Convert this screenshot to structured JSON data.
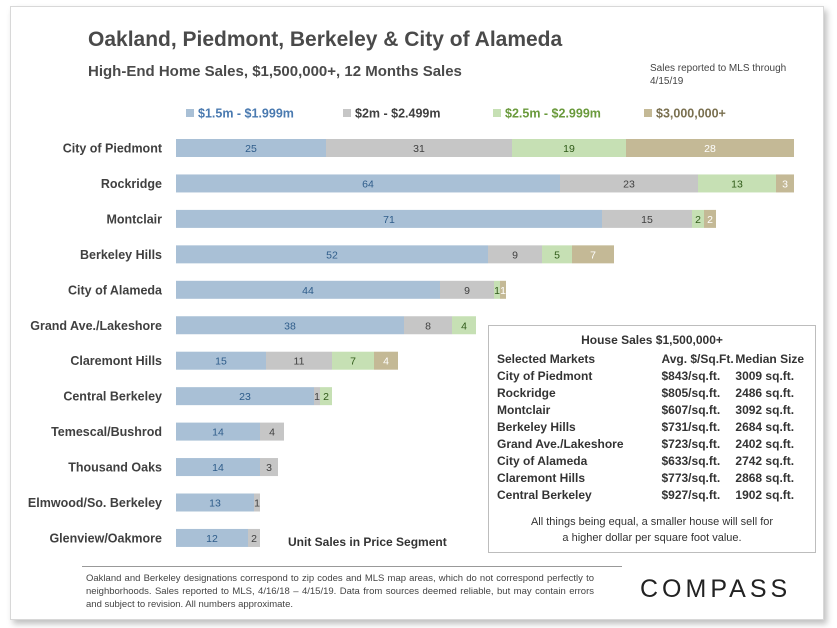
{
  "header": {
    "title": "Oakland, Piedmont, Berkeley & City of Alameda",
    "subtitle": "High-End  Home Sales, $1,500,000+, 12 Months Sales",
    "sales_note": "Sales reported to MLS through 4/15/19"
  },
  "chart_data": {
    "type": "bar",
    "orientation": "horizontal",
    "stacked": true,
    "title": "",
    "xlabel": "Unit Sales in Price Segment",
    "ylabel": "",
    "legend_position": "top",
    "grid": false,
    "xlim": [
      0,
      110
    ],
    "categories": [
      "City of Piedmont",
      "Rockridge",
      "Montclair",
      "Berkeley Hills",
      "City of Alameda",
      "Grand Ave./Lakeshore",
      "Claremont Hills",
      "Central Berkeley",
      "Temescal/Bushrod",
      "Thousand Oaks",
      "Elmwood/So. Berkeley",
      "Glenview/Oakmore"
    ],
    "series": [
      {
        "name": "$1.5m - $1.999m",
        "color": "#a9c0d6",
        "label_color": "#2e5c8a",
        "values": [
          25,
          64,
          71,
          52,
          44,
          38,
          15,
          23,
          14,
          14,
          13,
          12
        ]
      },
      {
        "name": "$2m - $2.499m",
        "color": "#c6c6c6",
        "label_color": "#404040",
        "values": [
          31,
          23,
          15,
          9,
          9,
          8,
          11,
          1,
          4,
          3,
          1,
          2
        ]
      },
      {
        "name": "$2.5m - $2.999m",
        "color": "#c6e0b4",
        "label_color": "#2f5a18",
        "values": [
          19,
          13,
          2,
          5,
          1,
          4,
          7,
          2,
          0,
          0,
          0,
          0
        ]
      },
      {
        "name": "$3,000,000+",
        "color": "#c4b996",
        "label_color": "#ffffff",
        "values": [
          28,
          3,
          2,
          7,
          1,
          0,
          4,
          0,
          0,
          0,
          0,
          0
        ]
      }
    ],
    "legend_text_colors": [
      "#4a7ab0",
      "#404040",
      "#6a9a3c",
      "#7a7050"
    ]
  },
  "infobox": {
    "title": "House Sales $1,500,000+",
    "columns": [
      "Selected Markets",
      "Avg. $/Sq.Ft.",
      "Median Size"
    ],
    "rows": [
      [
        "City of Piedmont",
        "$843/sq.ft.",
        "3009 sq.ft."
      ],
      [
        "Rockridge",
        "$805/sq.ft.",
        "2486 sq.ft."
      ],
      [
        "Montclair",
        "$607/sq.ft.",
        "3092 sq.ft."
      ],
      [
        "Berkeley Hills",
        "$731/sq.ft.",
        "2684 sq.ft."
      ],
      [
        "Grand Ave./Lakeshore",
        "$723/sq.ft.",
        "2402 sq.ft."
      ],
      [
        "City of Alameda",
        "$633/sq.ft.",
        "2742 sq.ft."
      ],
      [
        "Claremont Hills",
        "$773/sq.ft.",
        "2868 sq.ft."
      ],
      [
        "Central Berkeley",
        "$927/sq.ft.",
        "1902 sq.ft."
      ]
    ],
    "note_line1": "All things being equal, a smaller house will sell for",
    "note_line2": "a higher dollar per square foot value."
  },
  "footnote": "Oakland and Berkeley designations correspond to zip codes and MLS map areas, which do not correspond perfectly to neighborhoods. Sales reported to MLS, 4/16/18 – 4/15/19. Data from  sources deemed reliable, but may contain errors and subject to revision. All numbers approximate.",
  "brand": {
    "logo_text": "COMPASS"
  }
}
